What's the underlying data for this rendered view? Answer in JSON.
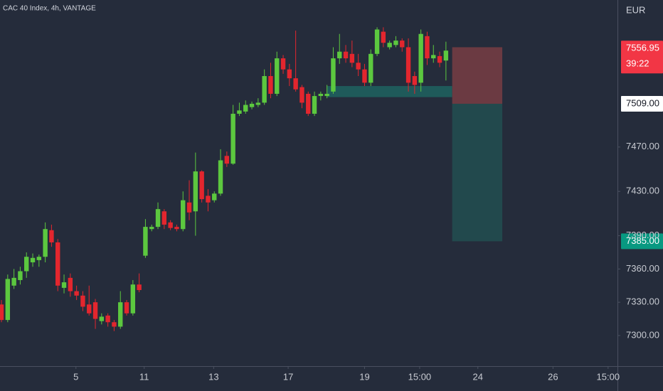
{
  "chart_data": {
    "type": "candlestick",
    "title": "CAC 40 Index, 4h, VANTAGE",
    "currency": "EUR",
    "open": [
      7328,
      7314,
      7345,
      7350,
      7358,
      7366,
      7368,
      7371,
      7395,
      7384,
      7343,
      7352,
      7340,
      7336,
      7328,
      7330,
      7313,
      7318,
      7312,
      7308,
      7330,
      7320,
      7346,
      7372,
      7396,
      7398,
      7412,
      7402,
      7398,
      7396,
      7420,
      7412,
      7448,
      7426,
      7422,
      7428,
      7462,
      7455,
      7500,
      7502,
      7506,
      7508,
      7510,
      7534,
      7518,
      7550,
      7540,
      7532,
      7524,
      7518,
      7500,
      7516,
      7516,
      7520,
      7550,
      7556,
      7554,
      7546,
      7540,
      7528,
      7554,
      7574,
      7560,
      7562,
      7566,
      7560,
      7534,
      7528,
      7570,
      7550,
      7552,
      7548
    ],
    "high": [
      7332,
      7355,
      7360,
      7362,
      7375,
      7374,
      7373,
      7402,
      7400,
      7387,
      7355,
      7356,
      7345,
      7340,
      7345,
      7333,
      7320,
      7320,
      7314,
      7340,
      7332,
      7350,
      7356,
      7405,
      7400,
      7420,
      7414,
      7404,
      7400,
      7430,
      7440,
      7465,
      7449,
      7432,
      7430,
      7468,
      7466,
      7508,
      7510,
      7512,
      7511,
      7514,
      7540,
      7546,
      7556,
      7553,
      7545,
      7575,
      7526,
      7520,
      7520,
      7520,
      7526,
      7560,
      7572,
      7562,
      7566,
      7554,
      7545,
      7558,
      7578,
      7578,
      7566,
      7570,
      7568,
      7568,
      7538,
      7576,
      7574,
      7562,
      7556,
      7565
    ],
    "low": [
      7312,
      7312,
      7342,
      7346,
      7352,
      7362,
      7362,
      7366,
      7380,
      7340,
      7338,
      7335,
      7332,
      7322,
      7318,
      7306,
      7310,
      7308,
      7304,
      7306,
      7318,
      7318,
      7339,
      7370,
      7394,
      7396,
      7396,
      7395,
      7394,
      7394,
      7404,
      7390,
      7420,
      7412,
      7420,
      7426,
      7452,
      7454,
      7498,
      7500,
      7504,
      7506,
      7508,
      7514,
      7516,
      7536,
      7525,
      7520,
      7505,
      7498,
      7498,
      7512,
      7514,
      7518,
      7545,
      7546,
      7542,
      7534,
      7525,
      7525,
      7552,
      7560,
      7558,
      7560,
      7556,
      7520,
      7518,
      7520,
      7544,
      7546,
      7542,
      7530
    ],
    "close": [
      7314,
      7351,
      7352,
      7358,
      7371,
      7370,
      7371,
      7396,
      7384,
      7345,
      7348,
      7340,
      7336,
      7326,
      7320,
      7315,
      7317,
      7312,
      7308,
      7330,
      7320,
      7346,
      7341,
      7398,
      7398,
      7414,
      7400,
      7397,
      7396,
      7422,
      7411,
      7448,
      7423,
      7420,
      7428,
      7458,
      7455,
      7500,
      7503,
      7508,
      7509,
      7510,
      7534,
      7518,
      7550,
      7540,
      7532,
      7522,
      7510,
      7500,
      7516,
      7518,
      7518,
      7550,
      7556,
      7550,
      7546,
      7540,
      7528,
      7554,
      7576,
      7564,
      7564,
      7566,
      7560,
      7528,
      7526,
      7572,
      7550,
      7553,
      7546,
      7556.95
    ],
    "up_color": "#5cc83f",
    "down_color": "#e3262e",
    "ylim": [
      7272.4,
      7602.6
    ],
    "yticks": [
      {
        "value": 7300,
        "label": "7300.00"
      },
      {
        "value": 7330,
        "label": "7330.00"
      },
      {
        "value": 7360,
        "label": "7360.00"
      },
      {
        "value": 7390,
        "label": "7390.00"
      },
      {
        "value": 7430,
        "label": "7430.00"
      },
      {
        "value": 7470,
        "label": "7470.00"
      }
    ],
    "xlim": [
      -0.23,
      98.4
    ],
    "xticks": [
      {
        "value": 11.9,
        "label": "5"
      },
      {
        "value": 22.8,
        "label": "11"
      },
      {
        "value": 33.9,
        "label": "13"
      },
      {
        "value": 45.8,
        "label": "17"
      },
      {
        "value": 58.0,
        "label": "19"
      },
      {
        "value": 66.8,
        "label": "15:00"
      },
      {
        "value": 76.1,
        "label": "24"
      },
      {
        "value": 88.1,
        "label": "26"
      },
      {
        "value": 96.9,
        "label": "15:00"
      }
    ],
    "zone": {
      "low": 7515,
      "high": 7525,
      "x": [
        52.0,
        72.0
      ],
      "color": "#1f5a5a"
    },
    "position": {
      "entry": 7509,
      "stop": 7560,
      "target": 7385,
      "x": [
        72.0,
        80.0
      ],
      "stop_color": "#6b3a42",
      "target_color": "#22494d"
    },
    "price_labels": [
      {
        "value": 7556.95,
        "label": "7556.95",
        "sub": "39:22",
        "color": "#f23645",
        "text_color": "#ffffff"
      },
      {
        "value": 7509,
        "label": "7509.00",
        "color": "#ffffff",
        "text_color": "#131722"
      },
      {
        "value": 7385,
        "label": "7385.00",
        "color": "#089981",
        "text_color": "#ffffff"
      }
    ]
  }
}
